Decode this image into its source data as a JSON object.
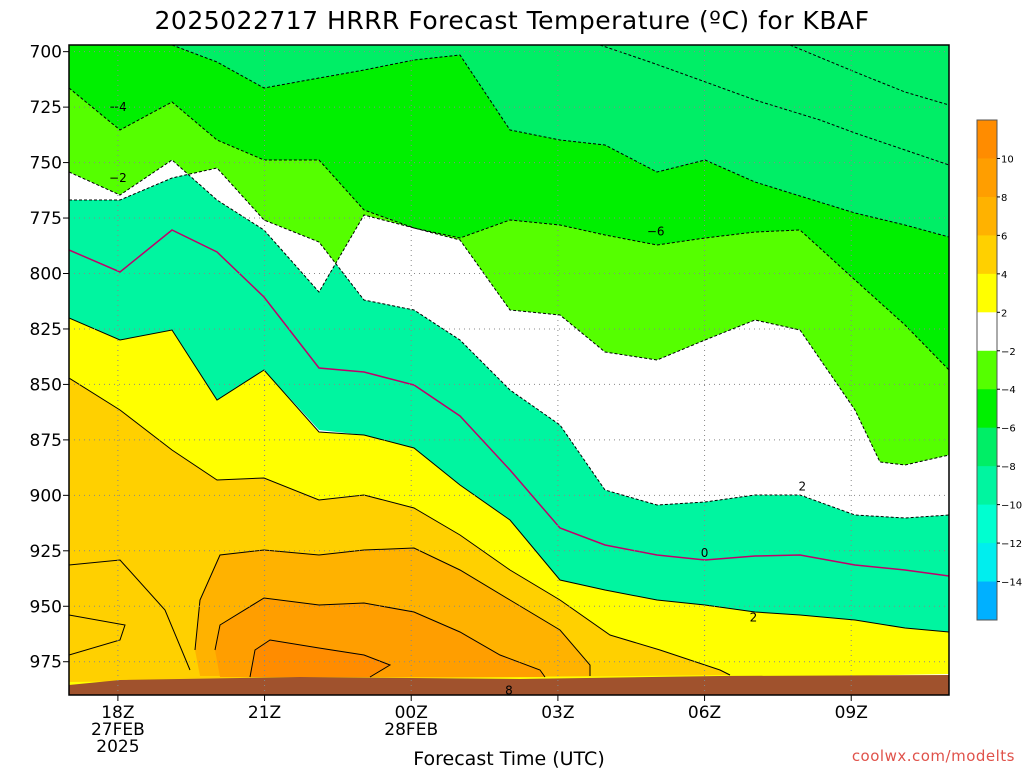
{
  "chart_data": {
    "type": "contour",
    "title": "2025022717 HRRR Forecast Temperature (ºC) for KBAF",
    "xlabel": "Forecast Time (UTC)",
    "ylabel": "",
    "y_ticks": [
      "700",
      "725",
      "750",
      "775",
      "800",
      "825",
      "850",
      "875",
      "900",
      "925",
      "950",
      "975"
    ],
    "y_range_hpa": [
      697,
      990
    ],
    "x_ticks": [
      {
        "line1": "18Z",
        "line2": "27FEB",
        "line3": "2025"
      },
      {
        "line1": "21Z",
        "line2": "",
        "line3": ""
      },
      {
        "line1": "00Z",
        "line2": "28FEB",
        "line3": ""
      },
      {
        "line1": "03Z",
        "line2": "",
        "line3": ""
      },
      {
        "line1": "06Z",
        "line2": "",
        "line3": ""
      },
      {
        "line1": "09Z",
        "line2": "",
        "line3": ""
      }
    ],
    "x_range_hours_from_18Z": [
      -1,
      17
    ],
    "colorbar": [
      {
        "min": 10,
        "max": 12,
        "color": "#ff8c00"
      },
      {
        "min": 8,
        "max": 10,
        "color": "#ff9e00"
      },
      {
        "min": 6,
        "max": 8,
        "color": "#ffb200"
      },
      {
        "min": 4,
        "max": 6,
        "color": "#ffd000"
      },
      {
        "min": 2,
        "max": 4,
        "color": "#ffff00"
      },
      {
        "min": -2,
        "max": 2,
        "color": "#ffffff"
      },
      {
        "min": -4,
        "max": -2,
        "color": "#55ff00"
      },
      {
        "min": -6,
        "max": -4,
        "color": "#00f000"
      },
      {
        "min": -8,
        "max": -6,
        "color": "#00ee66"
      },
      {
        "min": -10,
        "max": -8,
        "color": "#00f5a0"
      },
      {
        "min": -12,
        "max": -10,
        "color": "#00ffd0"
      },
      {
        "min": -14,
        "max": -12,
        "color": "#00eeee"
      },
      {
        "min": -16,
        "max": -14,
        "color": "#00b0ff"
      }
    ],
    "colorbar_labels": [
      "10",
      "8",
      "6",
      "4",
      "2",
      "−2",
      "−4",
      "−6",
      "−8",
      "−10",
      "−12",
      "−14"
    ],
    "contour_labels": [
      {
        "text": "−4",
        "time_hr": 0,
        "p_hpa": 725
      },
      {
        "text": "−2",
        "time_hr": 0,
        "p_hpa": 757
      },
      {
        "text": "−6",
        "time_hr": 11,
        "p_hpa": 781
      },
      {
        "text": "2",
        "time_hr": 14,
        "p_hpa": 896
      },
      {
        "text": "0",
        "time_hr": 12,
        "p_hpa": 926
      },
      {
        "text": "2",
        "time_hr": 13,
        "p_hpa": 955
      },
      {
        "text": "8",
        "time_hr": 8,
        "p_hpa": 988
      }
    ],
    "ground_color": "#a0522d",
    "colors": {
      "zero_isotherm": "#c0006a",
      "grid": "#888888"
    }
  },
  "credit": "coolwx.com/modelts"
}
